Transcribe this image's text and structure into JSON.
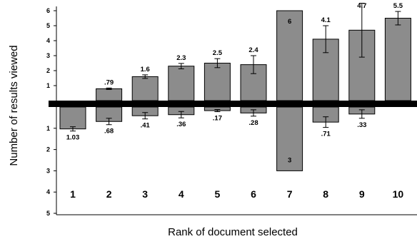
{
  "chart_data": {
    "type": "bar",
    "xlabel": "Rank of document selected",
    "ylabel": "Number of results viewed",
    "categories": [
      "1",
      "2",
      "3",
      "4",
      "5",
      "6",
      "7",
      "8",
      "9",
      "10"
    ],
    "series": [
      {
        "values": [
          0,
          0.79,
          1.6,
          2.3,
          2.5,
          2.4,
          6,
          4.1,
          4.7,
          5.5
        ],
        "labels": [
          "",
          ".79",
          "1.6",
          "2.3",
          "2.5",
          "2.4",
          "6",
          "4.1",
          "4.7",
          "5.5"
        ],
        "error": [
          0,
          0.05,
          0.12,
          0.18,
          0.3,
          0.6,
          0,
          0.9,
          1.8,
          0.45
        ]
      },
      {
        "values": [
          1.03,
          0.68,
          0.41,
          0.36,
          0.17,
          0.28,
          3,
          0.71,
          0.33,
          0
        ],
        "labels": [
          "1.03",
          ".68",
          ".41",
          ".36",
          ".17",
          ".28",
          "3",
          ".71",
          ".33",
          ""
        ],
        "error": [
          0.1,
          0.15,
          0.15,
          0.15,
          0.05,
          0.15,
          0,
          0.25,
          0.2,
          0
        ]
      }
    ],
    "yticks_above": [
      "1",
      "2",
      "3",
      "4",
      "5",
      "6"
    ],
    "yticks_below": [
      "1",
      "2",
      "3",
      "4",
      "5"
    ],
    "ylim_above": [
      0,
      6
    ],
    "ylim_below": [
      0,
      5
    ],
    "bar_color": "#8c8c8c",
    "grid": false,
    "legend": "none"
  }
}
